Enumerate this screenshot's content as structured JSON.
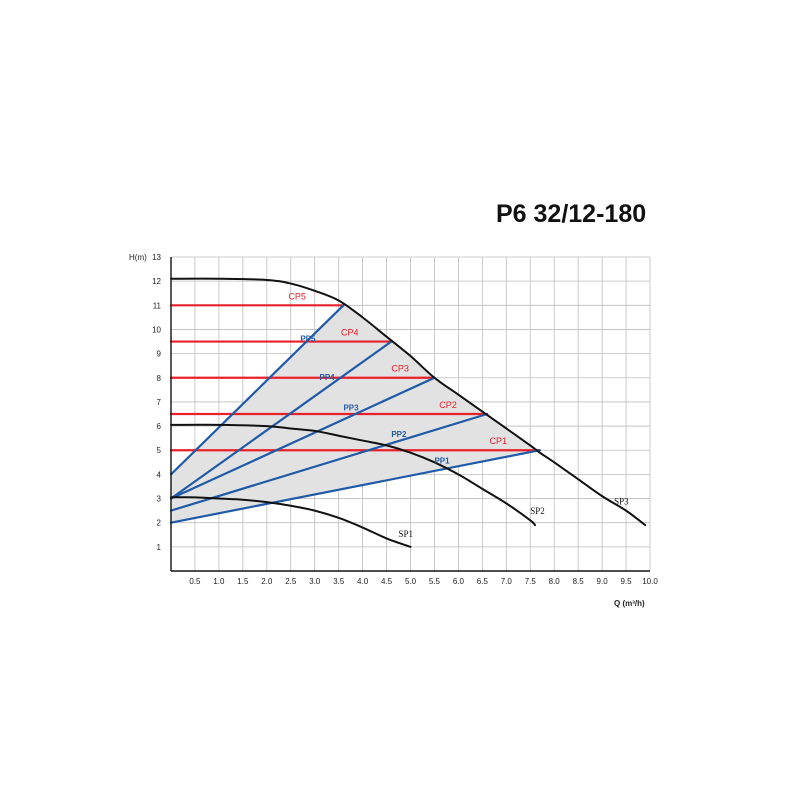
{
  "title": "P6 32/12-180",
  "chart_data": {
    "type": "line",
    "title": "P6 32/12-180",
    "xlabel": "Q (m³/h)",
    "ylabel": "H(m)",
    "xlim": [
      0,
      10
    ],
    "ylim": [
      0,
      13
    ],
    "x_ticks": [
      "0.5",
      "1.0",
      "1.5",
      "2.0",
      "2.5",
      "3.0",
      "3.5",
      "4.0",
      "4.5",
      "5.0",
      "5.5",
      "6.0",
      "6.5",
      "7.0",
      "7.5",
      "8.0",
      "8.5",
      "9.0",
      "9.5",
      "10.0"
    ],
    "y_ticks": [
      "1",
      "2",
      "3",
      "4",
      "5",
      "6",
      "7",
      "8",
      "9",
      "10",
      "11",
      "12",
      "13"
    ],
    "grid": true,
    "colors": {
      "constant_pressure": "#e8202a",
      "proportional_pressure": "#1f5aa8",
      "speed": "#111111",
      "fill": "#e2e2e2"
    },
    "series": [
      {
        "name": "SP3",
        "style": "speed",
        "x": [
          0,
          1.0,
          2.0,
          2.5,
          3.0,
          3.5,
          4.0,
          4.5,
          5.0,
          5.5,
          6.0,
          6.5,
          7.0,
          7.5,
          7.7,
          8.0,
          8.5,
          9.0,
          9.5,
          9.9
        ],
        "y": [
          12.1,
          12.1,
          12.05,
          11.9,
          11.6,
          11.2,
          10.5,
          9.7,
          8.9,
          8.0,
          7.3,
          6.6,
          5.9,
          5.2,
          4.9,
          4.5,
          3.8,
          3.1,
          2.5,
          1.9
        ]
      },
      {
        "name": "SP2",
        "style": "speed",
        "x": [
          0,
          1.0,
          2.0,
          2.5,
          3.0,
          3.5,
          4.0,
          4.5,
          5.0,
          5.5,
          6.0,
          6.5,
          7.0,
          7.5,
          7.6
        ],
        "y": [
          6.05,
          6.05,
          6.0,
          5.9,
          5.8,
          5.6,
          5.4,
          5.2,
          4.9,
          4.5,
          4.0,
          3.4,
          2.8,
          2.1,
          1.9
        ]
      },
      {
        "name": "SP1",
        "style": "speed",
        "x": [
          0,
          0.5,
          1.0,
          1.5,
          2.0,
          2.5,
          3.0,
          3.5,
          4.0,
          4.5,
          5.0
        ],
        "y": [
          3.05,
          3.05,
          3.0,
          2.95,
          2.85,
          2.7,
          2.5,
          2.2,
          1.8,
          1.35,
          1.0
        ]
      },
      {
        "name": "CP5",
        "style": "constant",
        "x": [
          0,
          3.6
        ],
        "y": [
          11,
          11
        ]
      },
      {
        "name": "CP4",
        "style": "constant",
        "x": [
          0,
          4.6
        ],
        "y": [
          9.5,
          9.5
        ]
      },
      {
        "name": "CP3",
        "style": "constant",
        "x": [
          0,
          5.5
        ],
        "y": [
          8,
          8
        ]
      },
      {
        "name": "CP2",
        "style": "constant",
        "x": [
          0,
          6.6
        ],
        "y": [
          6.5,
          6.5
        ]
      },
      {
        "name": "CP1",
        "style": "constant",
        "x": [
          0,
          7.7
        ],
        "y": [
          5,
          5
        ]
      },
      {
        "name": "PP5",
        "style": "proportional",
        "x": [
          0,
          3.6
        ],
        "y": [
          4.0,
          11.0
        ]
      },
      {
        "name": "PP4",
        "style": "proportional",
        "x": [
          0,
          4.6
        ],
        "y": [
          3.0,
          9.5
        ]
      },
      {
        "name": "PP3",
        "style": "proportional",
        "x": [
          0,
          5.5
        ],
        "y": [
          3.0,
          8.0
        ]
      },
      {
        "name": "PP2",
        "style": "proportional",
        "x": [
          0,
          6.6
        ],
        "y": [
          2.5,
          6.5
        ]
      },
      {
        "name": "PP1",
        "style": "proportional",
        "x": [
          0,
          7.7
        ],
        "y": [
          2.0,
          5.0
        ]
      }
    ],
    "shaded_region": {
      "upper": {
        "x": [
          0,
          3.6,
          4.0,
          4.6,
          5.0,
          5.5,
          6.0,
          6.6,
          7.0,
          7.7
        ],
        "y": [
          4.0,
          11.0,
          10.5,
          9.5,
          8.9,
          8.0,
          7.3,
          6.5,
          5.9,
          5.0
        ]
      },
      "lower": {
        "x": [
          0,
          7.7
        ],
        "y": [
          2.0,
          5.0
        ]
      }
    },
    "labels": [
      {
        "text": "CP5",
        "x": 2.45,
        "y": 11.25,
        "style": "red"
      },
      {
        "text": "CP4",
        "x": 3.55,
        "y": 9.75,
        "style": "red"
      },
      {
        "text": "CP3",
        "x": 4.6,
        "y": 8.25,
        "style": "red"
      },
      {
        "text": "CP2",
        "x": 5.6,
        "y": 6.75,
        "style": "red"
      },
      {
        "text": "CP1",
        "x": 6.65,
        "y": 5.25,
        "style": "red"
      },
      {
        "text": "PP5",
        "x": 2.7,
        "y": 9.5,
        "style": "blue"
      },
      {
        "text": "PP4",
        "x": 3.1,
        "y": 7.9,
        "style": "blue"
      },
      {
        "text": "PP3",
        "x": 3.6,
        "y": 6.65,
        "style": "blue"
      },
      {
        "text": "PP2",
        "x": 4.6,
        "y": 5.55,
        "style": "blue"
      },
      {
        "text": "PP1",
        "x": 5.5,
        "y": 4.45,
        "style": "blue"
      },
      {
        "text": "SP3",
        "x": 9.25,
        "y": 2.75,
        "style": "black"
      },
      {
        "text": "SP2",
        "x": 7.5,
        "y": 2.35,
        "style": "black"
      },
      {
        "text": "SP1",
        "x": 4.75,
        "y": 1.4,
        "style": "black"
      }
    ]
  }
}
